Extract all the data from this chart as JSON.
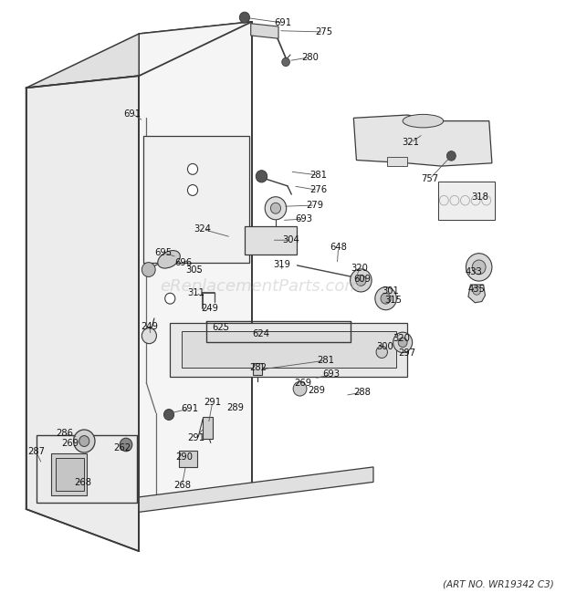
{
  "title": "",
  "art_no": "(ART NO. WR19342 C3)",
  "bg_color": "#ffffff",
  "line_color": "#3a3a3a",
  "watermark_text": "eReplacementParts.com",
  "watermark_color": "#bbbbbb",
  "watermark_alpha": 0.45,
  "figsize": [
    6.2,
    6.61
  ],
  "dpi": 100
}
